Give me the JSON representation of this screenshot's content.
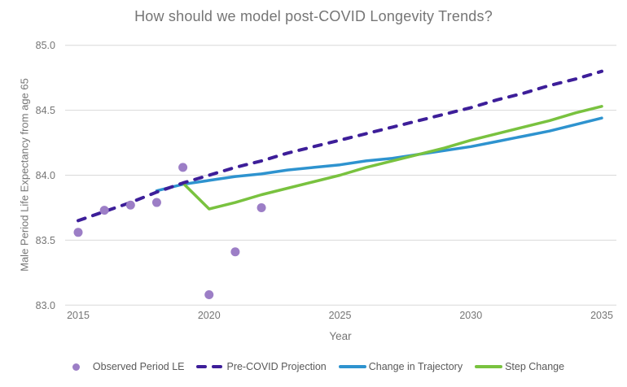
{
  "chart_data": {
    "type": "line",
    "title": "How should we model post-COVID Longevity Trends?",
    "xlabel": "Year",
    "ylabel": "Male Period Life Expectancy from age 65",
    "xlim": [
      2015,
      2035
    ],
    "ylim": [
      83.0,
      85.0
    ],
    "grid": "horizontal",
    "grid_color": "#D9D9D9",
    "axis_text_color": "#757575",
    "legend_position": "bottom",
    "x_ticks": [
      {
        "value": 2015,
        "label": "2015"
      },
      {
        "value": 2020,
        "label": "2020"
      },
      {
        "value": 2025,
        "label": "2025"
      },
      {
        "value": 2030,
        "label": "2030"
      },
      {
        "value": 2035,
        "label": "2035"
      }
    ],
    "y_ticks": [
      {
        "value": 85.0,
        "label": "85.0"
      },
      {
        "value": 84.5,
        "label": "84.5"
      },
      {
        "value": 84.0,
        "label": "84.0"
      },
      {
        "value": 83.5,
        "label": "83.5"
      },
      {
        "value": 83.0,
        "label": "83.0"
      }
    ],
    "series": [
      {
        "name": "Observed Period LE",
        "type": "scatter",
        "color": "#9C7EC6",
        "x": [
          2015,
          2016,
          2017,
          2018,
          2019,
          2020,
          2021,
          2022
        ],
        "y": [
          83.56,
          83.73,
          83.77,
          83.79,
          84.06,
          83.08,
          83.41,
          83.75
        ]
      },
      {
        "name": "Pre-COVID Projection",
        "type": "dashed-line",
        "color": "#3D1E99",
        "x": [
          2015,
          2016,
          2017,
          2018,
          2019,
          2020,
          2021,
          2022,
          2023,
          2024,
          2025,
          2026,
          2027,
          2028,
          2029,
          2030,
          2031,
          2032,
          2033,
          2034,
          2035
        ],
        "y": [
          83.65,
          83.72,
          83.79,
          83.87,
          83.94,
          84.0,
          84.06,
          84.11,
          84.17,
          84.22,
          84.27,
          84.32,
          84.37,
          84.42,
          84.47,
          84.52,
          84.58,
          84.63,
          84.69,
          84.74,
          84.8
        ]
      },
      {
        "name": "Change in Trajectory",
        "type": "line",
        "color": "#2E93CF",
        "x": [
          2018,
          2019,
          2020,
          2021,
          2022,
          2023,
          2024,
          2025,
          2026,
          2027,
          2028,
          2029,
          2030,
          2031,
          2032,
          2033,
          2034,
          2035
        ],
        "y": [
          83.88,
          83.93,
          83.96,
          83.99,
          84.01,
          84.04,
          84.06,
          84.08,
          84.11,
          84.13,
          84.16,
          84.19,
          84.22,
          84.26,
          84.3,
          84.34,
          84.39,
          84.44
        ]
      },
      {
        "name": "Step Change",
        "type": "line",
        "color": "#79C23F",
        "x": [
          2019,
          2020,
          2021,
          2022,
          2023,
          2024,
          2025,
          2026,
          2027,
          2028,
          2029,
          2030,
          2031,
          2032,
          2033,
          2034,
          2035
        ],
        "y": [
          83.94,
          83.74,
          83.79,
          83.85,
          83.9,
          83.95,
          84.0,
          84.06,
          84.11,
          84.16,
          84.21,
          84.27,
          84.32,
          84.37,
          84.42,
          84.48,
          84.53
        ]
      }
    ]
  }
}
